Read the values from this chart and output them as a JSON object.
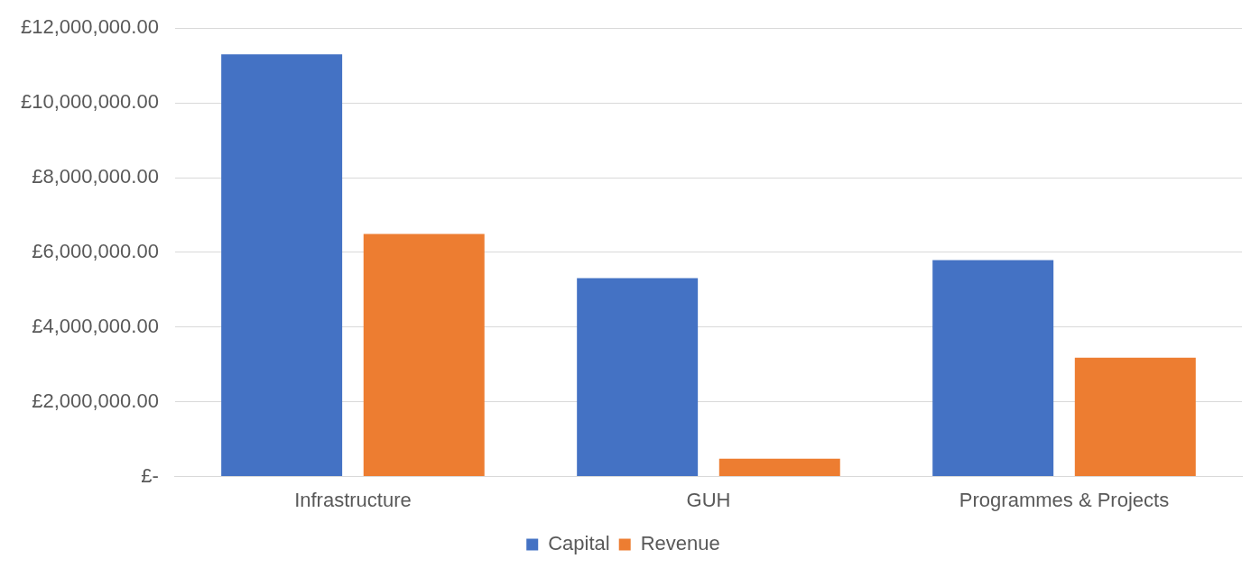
{
  "chart_data": {
    "type": "bar",
    "categories": [
      "Infrastructure",
      "GUH",
      "Programmes & Projects"
    ],
    "series": [
      {
        "name": "Capital",
        "color": "#4472c4",
        "values": [
          11300000,
          5310000,
          5790000
        ]
      },
      {
        "name": "Revenue",
        "color": "#ed7d31",
        "values": [
          6490000,
          480000,
          3180000
        ]
      }
    ],
    "ylim": [
      0,
      12000000
    ],
    "yticks": [
      {
        "value": 0,
        "label": "£-"
      },
      {
        "value": 2000000,
        "label": "£2,000,000.00"
      },
      {
        "value": 4000000,
        "label": "£4,000,000.00"
      },
      {
        "value": 6000000,
        "label": "£6,000,000.00"
      },
      {
        "value": 8000000,
        "label": "£8,000,000.00"
      },
      {
        "value": 10000000,
        "label": "£10,000,000.00"
      },
      {
        "value": 12000000,
        "label": "£12,000,000.00"
      }
    ],
    "grid": "y",
    "legend": "bottom"
  }
}
